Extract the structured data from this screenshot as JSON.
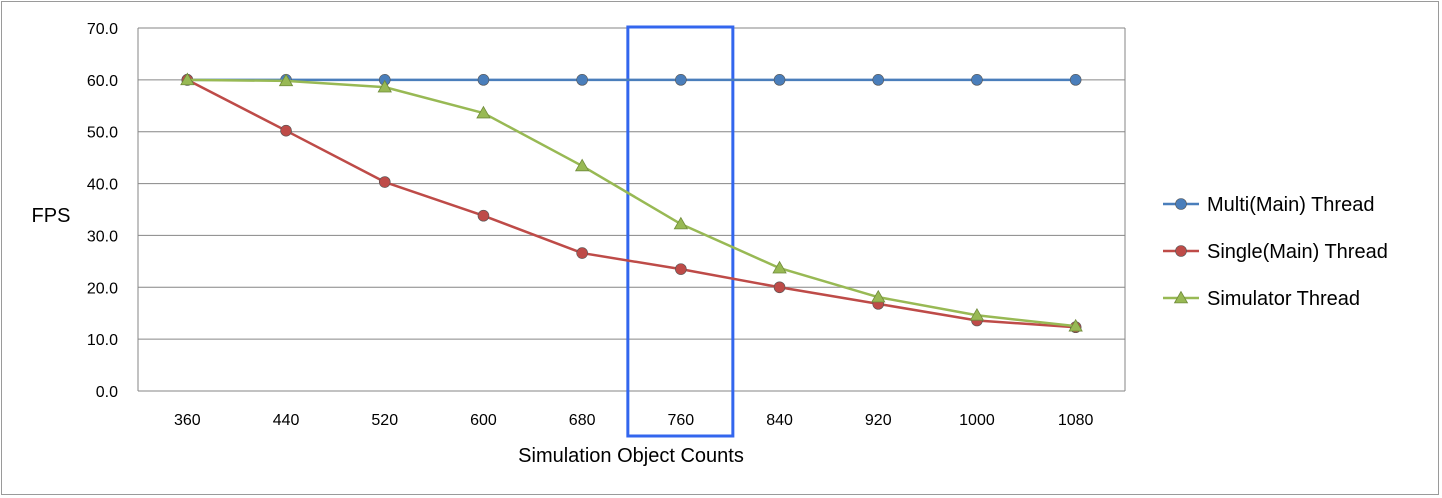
{
  "chart_data": {
    "type": "line",
    "title": "",
    "xlabel": "Simulation Object Counts",
    "ylabel": "FPS",
    "categories": [
      "360",
      "440",
      "520",
      "600",
      "680",
      "760",
      "840",
      "920",
      "1000",
      "1080"
    ],
    "ylim": [
      0,
      70
    ],
    "yticks": [
      "0.0",
      "10.0",
      "20.0",
      "30.0",
      "40.0",
      "50.0",
      "60.0",
      "70.0"
    ],
    "grid": true,
    "legend_position": "right",
    "series": [
      {
        "name": "Multi(Main) Thread",
        "color": "#4a7ebb",
        "marker": "circle",
        "values": [
          60,
          60,
          60,
          60,
          60,
          60,
          60,
          60,
          60,
          60
        ]
      },
      {
        "name": "Single(Main) Thread",
        "color": "#be4b48",
        "marker": "circle",
        "values": [
          60,
          50.2,
          40.3,
          33.8,
          26.6,
          23.5,
          20.0,
          16.8,
          13.6,
          12.3
        ]
      },
      {
        "name": "Simulator Thread",
        "color": "#98b954",
        "marker": "triangle",
        "values": [
          60,
          59.8,
          58.6,
          53.6,
          43.4,
          32.2,
          23.7,
          18.1,
          14.6,
          12.5
        ]
      }
    ],
    "highlight": {
      "category": "760",
      "color": "#3366ee"
    }
  }
}
